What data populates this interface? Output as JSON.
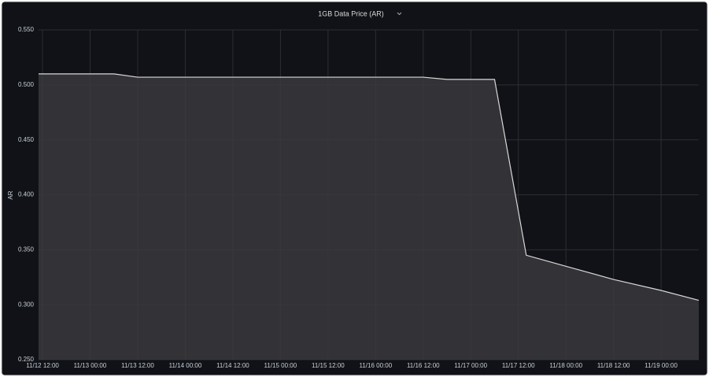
{
  "chart_data": {
    "type": "area",
    "title": "1GB Data Price (AR)",
    "y_label": "AR",
    "x": [
      "11/12 11:00",
      "11/13 06:00",
      "11/13 12:00",
      "11/16 12:00",
      "11/16 18:00",
      "11/17 06:00",
      "11/17 14:00",
      "11/18 00:00",
      "11/18 12:00",
      "11/19 00:00",
      "11/19 09:30"
    ],
    "series": [
      {
        "name": "1GB Data Price (AR)",
        "color": "#d8d8d8",
        "fill": "#3a3a3d",
        "values": [
          0.51,
          0.51,
          0.507,
          0.507,
          0.505,
          0.505,
          0.345,
          0.335,
          0.323,
          0.313,
          0.304
        ]
      }
    ],
    "xlim": [
      "11/12 11:00",
      "11/19 09:30"
    ],
    "xticks": [
      "11/12 12:00",
      "11/13 00:00",
      "11/13 12:00",
      "11/14 00:00",
      "11/14 12:00",
      "11/15 00:00",
      "11/15 12:00",
      "11/16 00:00",
      "11/16 12:00",
      "11/17 00:00",
      "11/17 12:00",
      "11/18 00:00",
      "11/18 12:00",
      "11/19 00:00"
    ],
    "ylim": [
      0.25,
      0.55
    ],
    "yticks": [
      {
        "value": 0.25,
        "label": "0.250"
      },
      {
        "value": 0.3,
        "label": "0.300"
      },
      {
        "value": 0.35,
        "label": "0.350"
      },
      {
        "value": 0.4,
        "label": "0.400"
      },
      {
        "value": 0.45,
        "label": "0.450"
      },
      {
        "value": 0.5,
        "label": "0.500"
      },
      {
        "value": 0.55,
        "label": "0.550"
      }
    ],
    "grid": true
  }
}
